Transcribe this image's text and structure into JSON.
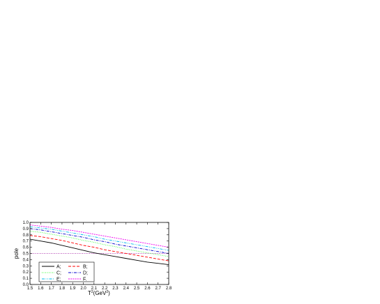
{
  "chart_data": {
    "type": "line",
    "title": "",
    "xlabel": "T",
    "xlabel_sup1": "2",
    "xlabel_mid": "(GeV",
    "xlabel_sup2": "2",
    "xlabel_end": ")",
    "ylabel": "pole",
    "xlim": [
      1.5,
      2.8
    ],
    "ylim": [
      0.0,
      1.0
    ],
    "x_ticks": [
      "1.5",
      "1.6",
      "1.7",
      "1.8",
      "1.9",
      "2.0",
      "2.1",
      "2.2",
      "2.3",
      "2.4",
      "2.5",
      "2.6",
      "2.7",
      "2.8"
    ],
    "y_ticks": [
      "0.0",
      "0.1",
      "0.2",
      "0.3",
      "0.4",
      "0.5",
      "0.6",
      "0.7",
      "0.8",
      "0.9",
      "1.0"
    ],
    "grid": false,
    "legend_placement": "bottom-left",
    "x": [
      1.5,
      1.6,
      1.7,
      1.8,
      1.9,
      2.0,
      2.1,
      2.2,
      2.3,
      2.4,
      2.5,
      2.6,
      2.7,
      2.8
    ],
    "series": [
      {
        "name": "A;",
        "color": "#000000",
        "dash": "solid",
        "values": [
          0.73,
          0.7,
          0.67,
          0.63,
          0.59,
          0.55,
          0.51,
          0.48,
          0.45,
          0.42,
          0.39,
          0.36,
          0.34,
          0.32
        ]
      },
      {
        "name": "B;",
        "color": "#ff0000",
        "dash": "dash",
        "values": [
          0.79,
          0.77,
          0.74,
          0.71,
          0.67,
          0.63,
          0.6,
          0.56,
          0.53,
          0.5,
          0.47,
          0.44,
          0.41,
          0.38
        ]
      },
      {
        "name": "C;",
        "color": "#33ff33",
        "dash": "dot",
        "values": [
          0.86,
          0.84,
          0.81,
          0.78,
          0.75,
          0.71,
          0.68,
          0.64,
          0.61,
          0.57,
          0.54,
          0.51,
          0.48,
          0.45
        ]
      },
      {
        "name": "D;",
        "color": "#0000cc",
        "dash": "dashdot",
        "values": [
          0.9,
          0.88,
          0.85,
          0.82,
          0.79,
          0.76,
          0.72,
          0.69,
          0.65,
          0.62,
          0.59,
          0.56,
          0.53,
          0.5
        ]
      },
      {
        "name": "E;",
        "color": "#00bbee",
        "dash": "dashdotdot",
        "values": [
          0.93,
          0.91,
          0.89,
          0.86,
          0.83,
          0.8,
          0.77,
          0.73,
          0.7,
          0.67,
          0.64,
          0.61,
          0.58,
          0.55
        ]
      },
      {
        "name": "F.",
        "color": "#ee00ee",
        "dash": "shortdash",
        "values": [
          0.96,
          0.94,
          0.92,
          0.89,
          0.87,
          0.84,
          0.81,
          0.78,
          0.75,
          0.72,
          0.69,
          0.66,
          0.63,
          0.6
        ]
      }
    ],
    "reference_line": {
      "y": 0.5,
      "color": "#990099",
      "dash": "dot"
    }
  }
}
